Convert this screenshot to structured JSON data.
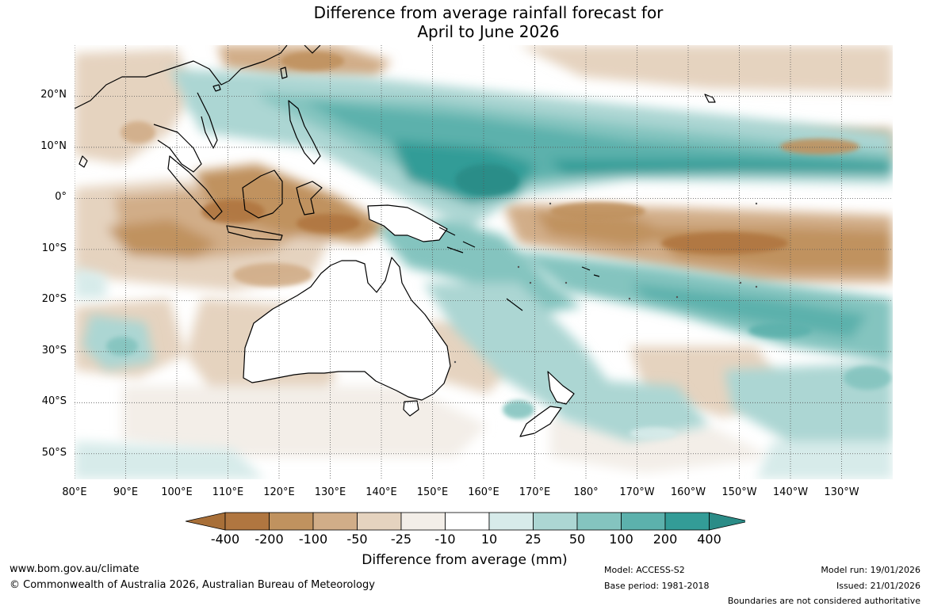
{
  "title": {
    "line1": "Difference from average rainfall forecast for",
    "line2": "April to June 2026"
  },
  "map": {
    "region": "Australia and Western Pacific",
    "lat_labels": [
      "20°N",
      "10°N",
      "0°",
      "10°S",
      "20°S",
      "30°S",
      "40°S",
      "50°S"
    ],
    "lat_values": [
      20,
      10,
      0,
      -10,
      -20,
      -30,
      -40,
      -50
    ],
    "lon_labels": [
      "80°E",
      "90°E",
      "100°E",
      "110°E",
      "120°E",
      "130°E",
      "140°E",
      "150°E",
      "160°E",
      "170°E",
      "180°",
      "170°W",
      "160°W",
      "150°W",
      "140°W",
      "130°W"
    ],
    "lon_values": [
      80,
      90,
      100,
      110,
      120,
      130,
      140,
      150,
      160,
      170,
      180,
      190,
      200,
      210,
      220,
      230
    ],
    "lat_range": [
      -55,
      30
    ],
    "lon_range": [
      80,
      240
    ],
    "icons": [
      "australia-coastline",
      "new-zealand-coastline",
      "papua-new-guinea-coastline",
      "asia-coastline",
      "pacific-islands"
    ]
  },
  "colorbar": {
    "ticks": [
      "-400",
      "-200",
      "-100",
      "-50",
      "-25",
      "-10",
      "10",
      "25",
      "50",
      "100",
      "200",
      "400"
    ],
    "colors": [
      "#a86f38",
      "#b07640",
      "#c0925f",
      "#d1ad88",
      "#e5d3bf",
      "#f3eee8",
      "#ffffff",
      "#d7ebea",
      "#acd6d3",
      "#84c4bf",
      "#5cb1ac",
      "#339c97",
      "#2b8c87"
    ],
    "label": "Difference from average (mm)"
  },
  "footer": {
    "website": "www.bom.gov.au/climate",
    "copyright": "© Commonwealth of Australia 2026, Australian Bureau of Meteorology",
    "model": "Model: ACCESS-S2",
    "base_period": "Base period: 1981-2018",
    "model_run": "Model run: 19/01/2026",
    "issued": "Issued: 21/01/2026",
    "disclaimer": "Boundaries are not considered authoritative"
  }
}
